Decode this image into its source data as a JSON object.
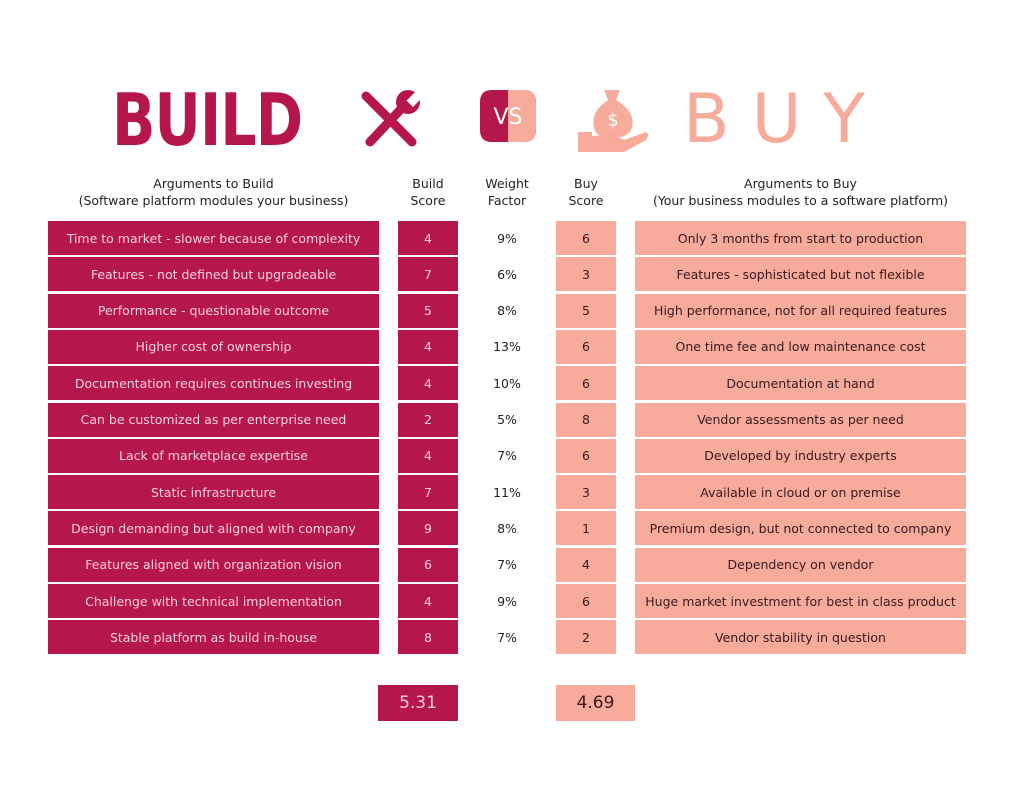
{
  "header": {
    "build": "BUILD",
    "vs": "VS",
    "buy": "BUY"
  },
  "columns": {
    "build_argument": [
      "Arguments to Build",
      "(Software platform modules your business)"
    ],
    "build_score": [
      "Build",
      "Score"
    ],
    "weight": [
      "Weight",
      "Factor"
    ],
    "buy_score": [
      "Buy",
      "Score"
    ],
    "buy_argument": [
      "Arguments to Buy",
      "(Your business modules to a software platform)"
    ]
  },
  "table": {
    "rows": [
      [
        "Time to market - slower because of complexity",
        4,
        "9%",
        6,
        "Only 3 months from start to production"
      ],
      [
        "Features - not defined but upgradeable",
        7,
        "6%",
        3,
        "Features - sophisticated but not flexible"
      ],
      [
        "Performance - questionable outcome",
        5,
        "8%",
        5,
        "High performance, not for all required features"
      ],
      [
        "Higher cost of ownership",
        4,
        "13%",
        6,
        "One time fee and low maintenance cost"
      ],
      [
        "Documentation requires continues investing",
        4,
        "10%",
        6,
        "Documentation at hand"
      ],
      [
        "Can be customized as per enterprise need",
        2,
        "5%",
        8,
        "Vendor assessments as per need"
      ],
      [
        "Lack of marketplace expertise",
        4,
        "7%",
        6,
        "Developed by industry experts"
      ],
      [
        "Static infrastructure",
        7,
        "11%",
        3,
        "Available in cloud or on premise"
      ],
      [
        "Design demanding but aligned with company",
        9,
        "8%",
        1,
        "Premium design, but not connected to company"
      ],
      [
        "Features aligned with organization vision",
        6,
        "7%",
        4,
        "Dependency on vendor"
      ],
      [
        "Challenge with technical implementation",
        4,
        "9%",
        6,
        "Huge market investment for best in class product"
      ],
      [
        "Stable platform as build in-house",
        8,
        "7%",
        2,
        "Vendor stability in question"
      ]
    ]
  },
  "totals": {
    "build": "5.31",
    "buy": "4.69"
  }
}
